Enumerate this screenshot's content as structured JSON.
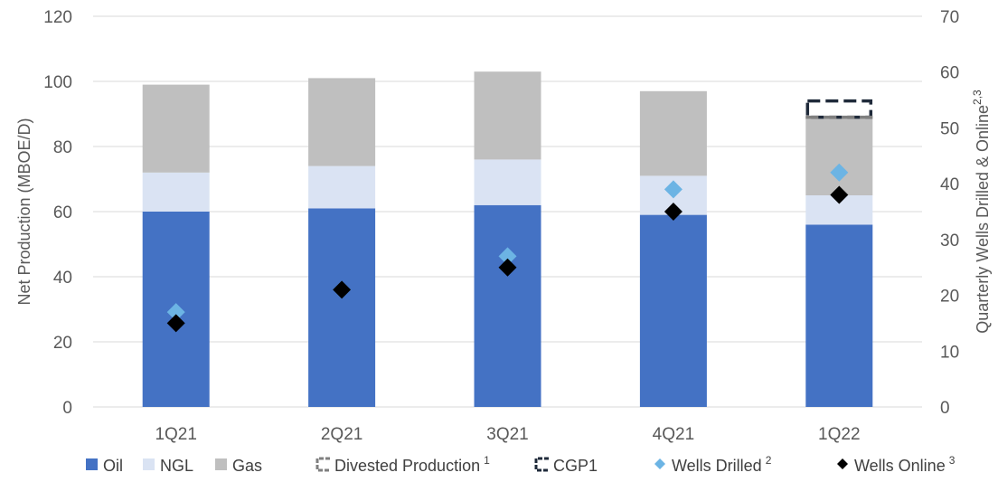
{
  "chart_data": {
    "type": "bar",
    "categories": [
      "1Q21",
      "2Q21",
      "3Q21",
      "4Q21",
      "1Q22"
    ],
    "series": [
      {
        "name": "Oil",
        "values": [
          60,
          61,
          62,
          59,
          56
        ],
        "color": "#4472c4"
      },
      {
        "name": "NGL",
        "values": [
          12,
          13,
          14,
          12,
          9
        ],
        "color": "#dae3f3"
      },
      {
        "name": "Gas",
        "values": [
          27,
          27,
          27,
          26,
          24
        ],
        "color": "#bfbfbf"
      },
      {
        "name": "Divested Production",
        "values": [
          0,
          0,
          0,
          0,
          0
        ],
        "color": "#7f7f7f"
      },
      {
        "name": "CGP1",
        "values": [
          0,
          0,
          0,
          0,
          5
        ],
        "color": "#1f2a3a"
      }
    ],
    "wells_drilled": {
      "name": "Wells Drilled",
      "values": [
        17,
        21,
        27,
        39,
        42
      ],
      "color": "#6cb4e4"
    },
    "wells_online": {
      "name": "Wells Online",
      "values": [
        15,
        21,
        25,
        35,
        38
      ],
      "color": "#000000"
    },
    "ylabel": "Net Production (MBOE/D)",
    "ylabel_right": "Quarterly Wells Drilled & Online",
    "ylabel_right_sup": "2,3",
    "ylim": [
      0,
      120
    ],
    "ylim_right": [
      0,
      70
    ],
    "yticks": [
      "0",
      "20",
      "40",
      "60",
      "80",
      "100",
      "120"
    ],
    "yticks_right": [
      "0",
      "10",
      "20",
      "30",
      "40",
      "50",
      "60",
      "70"
    ],
    "grid": true,
    "legend_position": "bottom",
    "legend": [
      {
        "label": "Oil",
        "sup": "",
        "symbol": "square",
        "color": "#4472c4"
      },
      {
        "label": "NGL",
        "sup": "",
        "symbol": "square",
        "color": "#dae3f3"
      },
      {
        "label": "Gas",
        "sup": "",
        "symbol": "square",
        "color": "#bfbfbf"
      },
      {
        "label": "Divested Production",
        "sup": "1",
        "symbol": "dashed-box",
        "color": "#7f7f7f"
      },
      {
        "label": "CGP1",
        "sup": "",
        "symbol": "dashed-box",
        "color": "#1f2a3a"
      },
      {
        "label": "Wells Drilled",
        "sup": "2",
        "symbol": "diamond",
        "color": "#6cb4e4"
      },
      {
        "label": "Wells Online",
        "sup": "3",
        "symbol": "diamond",
        "color": "#000000"
      }
    ]
  }
}
